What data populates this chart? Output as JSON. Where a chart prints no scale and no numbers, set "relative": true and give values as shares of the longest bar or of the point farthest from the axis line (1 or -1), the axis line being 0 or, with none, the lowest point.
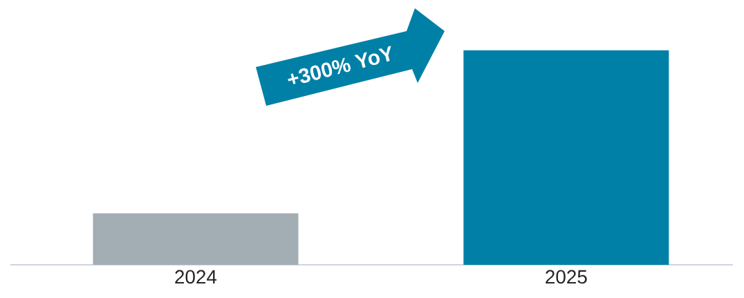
{
  "chart_data": {
    "type": "bar",
    "relative": true,
    "categories": [
      "2024",
      "2025"
    ],
    "values": [
      0.24,
      1
    ],
    "colors": [
      "#a2adb4",
      "#0080a6"
    ],
    "annotations": [
      "+300% YoY"
    ]
  }
}
